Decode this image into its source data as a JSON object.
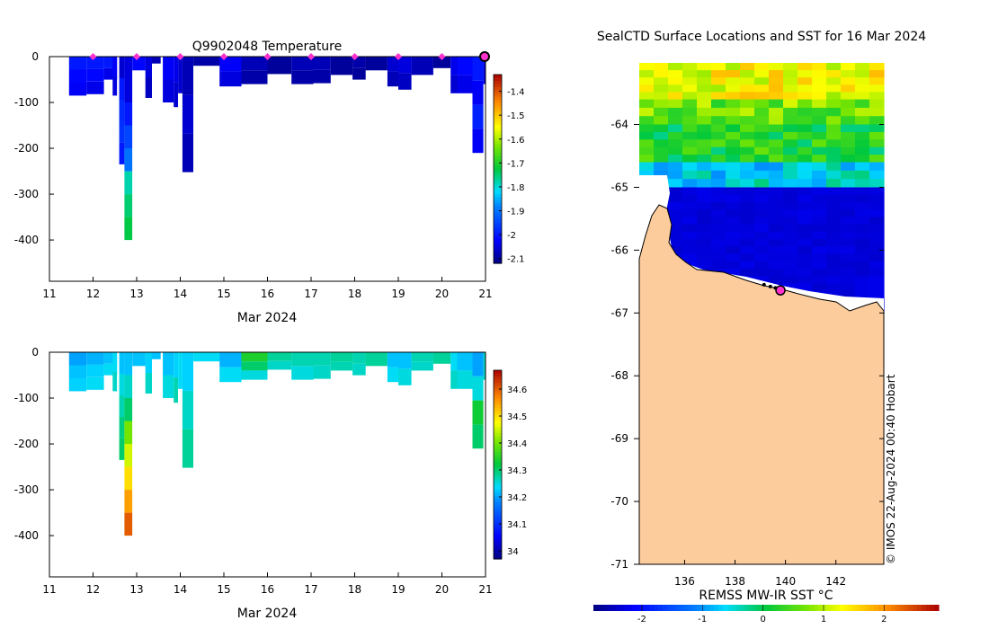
{
  "chart_data": [
    {
      "type": "heatmap",
      "title": "Q9902048  Temperature",
      "xlabel": "Mar 2024",
      "ylabel": "",
      "x_range": [
        11,
        21
      ],
      "x_ticks": [
        "11",
        "12",
        "13",
        "14",
        "15",
        "16",
        "17",
        "18",
        "19",
        "20",
        "21"
      ],
      "y_range": [
        -490,
        0
      ],
      "y_ticks": [
        "0",
        "-100",
        "-200",
        "-300",
        "-400"
      ],
      "colorbar": {
        "range": [
          -2.12,
          -1.33
        ],
        "ticks": [
          "-1.4",
          "-1.5",
          "-1.6",
          "-1.7",
          "-1.8",
          "-1.9",
          "-2",
          "-2.1"
        ],
        "tick_values": [
          -1.4,
          -1.5,
          -1.6,
          -1.7,
          -1.8,
          -1.9,
          -2.0,
          -2.1
        ]
      },
      "profile_markers_day": [
        12,
        13,
        14,
        15,
        16,
        17,
        18,
        19,
        20
      ],
      "current_position_day": 21,
      "profiles": [
        {
          "day": 11.45,
          "width": 0.4,
          "depth": 85,
          "values": [
            -2.0,
            -2.02,
            -2.03
          ]
        },
        {
          "day": 11.85,
          "width": 0.4,
          "depth": 82,
          "values": [
            -2.0,
            -2.02,
            -2.04
          ]
        },
        {
          "day": 12.25,
          "width": 0.3,
          "depth": 50,
          "values": [
            -2.0,
            -2.04
          ]
        },
        {
          "day": 12.45,
          "width": 0.1,
          "depth": 85,
          "values": [
            -2.03,
            -2.05
          ]
        },
        {
          "day": 12.6,
          "width": 0.12,
          "depth": 235,
          "values": [
            -2.06,
            -2.0,
            -1.98,
            -1.97,
            -2.0
          ]
        },
        {
          "day": 12.72,
          "width": 0.18,
          "depth": 400,
          "values": [
            -2.05,
            -2.05,
            -2.0,
            -1.95,
            -1.9,
            -1.78,
            -1.75,
            -1.73
          ]
        },
        {
          "day": 12.9,
          "width": 0.3,
          "depth": 30,
          "values": [
            -2.02
          ]
        },
        {
          "day": 13.2,
          "width": 0.15,
          "depth": 90,
          "values": [
            -2.05,
            -2.07
          ]
        },
        {
          "day": 13.35,
          "width": 0.2,
          "depth": 15,
          "values": [
            -2.08
          ]
        },
        {
          "day": 13.6,
          "width": 0.25,
          "depth": 100,
          "values": [
            -2.03,
            -2.05
          ]
        },
        {
          "day": 13.85,
          "width": 0.1,
          "depth": 110,
          "values": [
            -2.04,
            -2.06
          ]
        },
        {
          "day": 13.95,
          "width": 0.1,
          "depth": 80,
          "values": [
            -2.06
          ]
        },
        {
          "day": 14.05,
          "width": 0.25,
          "depth": 252,
          "values": [
            -2.08,
            -2.06,
            -2.08
          ]
        },
        {
          "day": 14.3,
          "width": 0.7,
          "depth": 20,
          "values": [
            -2.09
          ]
        },
        {
          "day": 14.9,
          "width": 0.5,
          "depth": 65,
          "values": [
            -2.03,
            -2.05
          ]
        },
        {
          "day": 15.4,
          "width": 0.6,
          "depth": 60,
          "values": [
            -2.08,
            -2.09
          ]
        },
        {
          "day": 16.0,
          "width": 0.55,
          "depth": 38,
          "values": [
            -2.1
          ]
        },
        {
          "day": 16.55,
          "width": 0.5,
          "depth": 60,
          "values": [
            -2.08,
            -2.09
          ]
        },
        {
          "day": 17.05,
          "width": 0.4,
          "depth": 58,
          "values": [
            -2.08,
            -2.09
          ]
        },
        {
          "day": 17.45,
          "width": 0.5,
          "depth": 40,
          "values": [
            -2.1
          ]
        },
        {
          "day": 17.95,
          "width": 0.3,
          "depth": 50,
          "values": [
            -2.09,
            -2.1
          ]
        },
        {
          "day": 18.25,
          "width": 0.5,
          "depth": 30,
          "values": [
            -2.1
          ]
        },
        {
          "day": 18.75,
          "width": 0.25,
          "depth": 65,
          "values": [
            -2.06,
            -2.08
          ]
        },
        {
          "day": 19.0,
          "width": 0.3,
          "depth": 72,
          "values": [
            -2.05,
            -2.07
          ]
        },
        {
          "day": 19.3,
          "width": 0.5,
          "depth": 40,
          "values": [
            -2.08
          ]
        },
        {
          "day": 19.8,
          "width": 0.4,
          "depth": 25,
          "values": [
            -2.1
          ]
        },
        {
          "day": 20.2,
          "width": 0.15,
          "depth": 80,
          "values": [
            -2.04,
            -2.06
          ]
        },
        {
          "day": 20.35,
          "width": 0.35,
          "depth": 80,
          "values": [
            -2.02,
            -2.04
          ]
        },
        {
          "day": 20.7,
          "width": 0.25,
          "depth": 210,
          "values": [
            -2.0,
            -2.03,
            -1.99,
            -2.03
          ]
        },
        {
          "day": 20.95,
          "width": 0.05,
          "depth": 60,
          "values": [
            -2.05
          ]
        }
      ]
    },
    {
      "type": "heatmap",
      "title": "",
      "xlabel": "Mar 2024",
      "ylabel": "",
      "x_range": [
        11,
        21
      ],
      "x_ticks": [
        "11",
        "12",
        "13",
        "14",
        "15",
        "16",
        "17",
        "18",
        "19",
        "20",
        "21"
      ],
      "y_range": [
        -490,
        0
      ],
      "y_ticks": [
        "0",
        "-100",
        "-200",
        "-300",
        "-400"
      ],
      "colorbar": {
        "range": [
          33.97,
          34.67
        ],
        "ticks": [
          "34.6",
          "34.5",
          "34.4",
          "34.3",
          "34.2",
          "34.1",
          "34"
        ],
        "tick_values": [
          34.6,
          34.5,
          34.4,
          34.3,
          34.2,
          34.1,
          34.0
        ]
      },
      "profiles": [
        {
          "day": 11.45,
          "width": 0.4,
          "depth": 85,
          "values": [
            34.2,
            34.22,
            34.23
          ]
        },
        {
          "day": 11.85,
          "width": 0.4,
          "depth": 82,
          "values": [
            34.21,
            34.23,
            34.24
          ]
        },
        {
          "day": 12.25,
          "width": 0.3,
          "depth": 50,
          "values": [
            34.22,
            34.24
          ]
        },
        {
          "day": 12.45,
          "width": 0.1,
          "depth": 85,
          "values": [
            34.24,
            34.26
          ]
        },
        {
          "day": 12.6,
          "width": 0.12,
          "depth": 235,
          "values": [
            34.22,
            34.25,
            34.27,
            34.29,
            34.3
          ]
        },
        {
          "day": 12.72,
          "width": 0.18,
          "depth": 400,
          "values": [
            34.22,
            34.26,
            34.3,
            34.4,
            34.45,
            34.5,
            34.55,
            34.6
          ]
        },
        {
          "day": 12.9,
          "width": 0.3,
          "depth": 30,
          "values": [
            34.22
          ]
        },
        {
          "day": 13.2,
          "width": 0.15,
          "depth": 90,
          "values": [
            34.23,
            34.26
          ]
        },
        {
          "day": 13.35,
          "width": 0.2,
          "depth": 15,
          "values": [
            34.22
          ]
        },
        {
          "day": 13.6,
          "width": 0.25,
          "depth": 100,
          "values": [
            34.22,
            34.25
          ]
        },
        {
          "day": 13.85,
          "width": 0.1,
          "depth": 110,
          "values": [
            34.23,
            34.27
          ]
        },
        {
          "day": 13.95,
          "width": 0.1,
          "depth": 80,
          "values": [
            34.24
          ]
        },
        {
          "day": 14.05,
          "width": 0.25,
          "depth": 252,
          "values": [
            34.23,
            34.26,
            34.28
          ]
        },
        {
          "day": 14.3,
          "width": 0.7,
          "depth": 20,
          "values": [
            34.24
          ]
        },
        {
          "day": 14.9,
          "width": 0.5,
          "depth": 65,
          "values": [
            34.21,
            34.24
          ]
        },
        {
          "day": 15.4,
          "width": 0.6,
          "depth": 60,
          "values": [
            34.34,
            34.3,
            34.25
          ]
        },
        {
          "day": 16.0,
          "width": 0.55,
          "depth": 38,
          "values": [
            34.28,
            34.26
          ]
        },
        {
          "day": 16.55,
          "width": 0.5,
          "depth": 60,
          "values": [
            34.27,
            34.25
          ]
        },
        {
          "day": 17.05,
          "width": 0.4,
          "depth": 58,
          "values": [
            34.27,
            34.26
          ]
        },
        {
          "day": 17.45,
          "width": 0.5,
          "depth": 40,
          "values": [
            34.28,
            34.27
          ]
        },
        {
          "day": 17.95,
          "width": 0.3,
          "depth": 50,
          "values": [
            34.27,
            34.26
          ]
        },
        {
          "day": 18.25,
          "width": 0.5,
          "depth": 30,
          "values": [
            34.28
          ]
        },
        {
          "day": 18.75,
          "width": 0.25,
          "depth": 65,
          "values": [
            34.22,
            34.24
          ]
        },
        {
          "day": 19.0,
          "width": 0.3,
          "depth": 72,
          "values": [
            34.22,
            34.25
          ]
        },
        {
          "day": 19.3,
          "width": 0.5,
          "depth": 40,
          "values": [
            34.27,
            34.26
          ]
        },
        {
          "day": 19.8,
          "width": 0.4,
          "depth": 25,
          "values": [
            34.28
          ]
        },
        {
          "day": 20.2,
          "width": 0.15,
          "depth": 80,
          "values": [
            34.24,
            34.26
          ]
        },
        {
          "day": 20.35,
          "width": 0.35,
          "depth": 80,
          "values": [
            34.22,
            34.25
          ]
        },
        {
          "day": 20.7,
          "width": 0.25,
          "depth": 210,
          "values": [
            34.2,
            34.25,
            34.33,
            34.3
          ]
        },
        {
          "day": 20.95,
          "width": 0.05,
          "depth": 60,
          "values": [
            34.26
          ]
        }
      ]
    },
    {
      "type": "heatmap",
      "title": "SealCTD Surface Locations and SST for 16 Mar 2024",
      "xlabel": "REMSS MW-IR SST °C",
      "x_range": [
        134.2,
        143.9
      ],
      "x_ticks": [
        "136",
        "138",
        "140",
        "142"
      ],
      "x_tick_values": [
        136,
        138,
        140,
        142
      ],
      "y_range": [
        -71,
        -63.02
      ],
      "y_ticks": [
        "-64",
        "-65",
        "-66",
        "-67",
        "-68",
        "-69",
        "-70",
        "-71"
      ],
      "y_tick_values": [
        -64,
        -65,
        -66,
        -67,
        -68,
        -69,
        -70,
        -71
      ],
      "colorbar": {
        "range": [
          -2.8,
          2.9
        ],
        "ticks": [
          "-2",
          "-1",
          "0",
          "1",
          "2"
        ],
        "tick_values": [
          -2,
          -1,
          0,
          1,
          2
        ]
      },
      "sst_bands": [
        {
          "lat_top": -63.02,
          "lat_bottom": -63.6,
          "value": 1.3
        },
        {
          "lat_top": -63.6,
          "lat_bottom": -64.0,
          "value": 0.7
        },
        {
          "lat_top": -64.0,
          "lat_bottom": -64.6,
          "value": 0.2
        },
        {
          "lat_top": -64.6,
          "lat_bottom": -65.0,
          "value": -0.6
        },
        {
          "lat_top": -65.0,
          "lat_bottom": -67.0,
          "value": -2.3
        }
      ],
      "land_color": "#fccc9c",
      "track_points": [
        [
          139.15,
          -66.55
        ],
        [
          139.4,
          -66.58
        ],
        [
          139.6,
          -66.6
        ]
      ],
      "current_location": [
        139.8,
        -66.64
      ],
      "credit": "© IMOS 22-Aug-2024 00:40 Hobart"
    }
  ]
}
